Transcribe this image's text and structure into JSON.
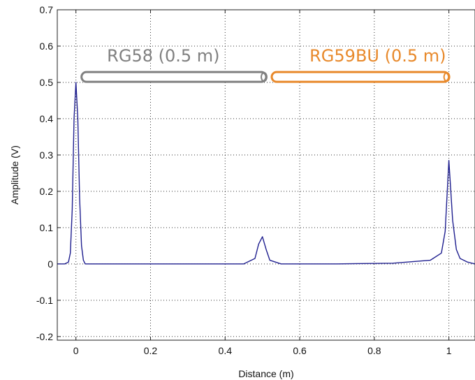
{
  "chart_data": {
    "type": "line",
    "title": "",
    "xlabel": "Distance (m)",
    "ylabel": "Amplitude (V)",
    "xlim": [
      -0.05,
      1.07
    ],
    "ylim": [
      -0.21,
      0.7
    ],
    "xticks": [
      0,
      0.2,
      0.4,
      0.6,
      0.8,
      1
    ],
    "xtick_labels": [
      "0",
      "0.2",
      "0.4",
      "0.6",
      "0.8",
      "1"
    ],
    "yticks": [
      0.7,
      0.6,
      0.5,
      0.4,
      0.3,
      0.2,
      0.1,
      0,
      -0.1,
      -0.2
    ],
    "ytick_labels": [
      "0.7",
      "0.6",
      "0.5",
      "0.4",
      "0.3",
      "0.2",
      "0.1",
      "0",
      "-0.1",
      "-0.2"
    ],
    "grid": true,
    "series": [
      {
        "color": "#1f1f8f",
        "x": [
          -0.05,
          -0.03,
          -0.02,
          -0.015,
          -0.01,
          -0.005,
          0,
          0.005,
          0.01,
          0.015,
          0.02,
          0.025,
          0.03,
          0.05,
          0.1,
          0.3,
          0.45,
          0.48,
          0.49,
          0.5,
          0.51,
          0.52,
          0.55,
          0.7,
          0.85,
          0.95,
          0.98,
          0.99,
          1.0,
          1.01,
          1.02,
          1.03,
          1.05,
          1.07
        ],
        "y": [
          0.0,
          0.0,
          0.005,
          0.03,
          0.15,
          0.4,
          0.5,
          0.4,
          0.18,
          0.05,
          0.01,
          0.0,
          0.0,
          0.0,
          0.0,
          0.0,
          0.0,
          0.015,
          0.055,
          0.075,
          0.04,
          0.01,
          0.0,
          0.0,
          0.002,
          0.01,
          0.03,
          0.09,
          0.285,
          0.12,
          0.04,
          0.015,
          0.005,
          0.0
        ]
      }
    ],
    "annotations": [
      {
        "text": "RG58 (0.5 m)",
        "color": "#808080",
        "x_start": 0.0,
        "x_end": 0.51,
        "y": 0.515
      },
      {
        "text": "RG59BU (0.5 m)",
        "color": "#e8892b",
        "x_start": 0.51,
        "x_end": 1.0,
        "y": 0.515
      }
    ]
  }
}
